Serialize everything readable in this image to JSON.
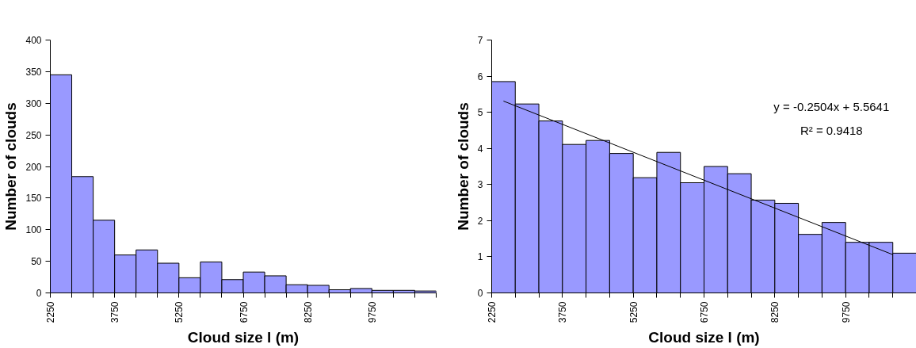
{
  "chart_data": [
    {
      "type": "histogram",
      "xlabel": "Cloud size l (m)",
      "ylabel": "Number of clouds",
      "color": "#9999ff",
      "bins": [
        2250,
        2750,
        3250,
        3750,
        4250,
        4750,
        5250,
        5750,
        6250,
        6750,
        7250,
        7750,
        8250,
        8750,
        9250,
        9750,
        10250,
        10750,
        11250
      ],
      "values": [
        345,
        184,
        115,
        60,
        68,
        47,
        24,
        49,
        21,
        33,
        27,
        13,
        12,
        5,
        7,
        4,
        4,
        3
      ],
      "xlim": [
        2250,
        11250
      ],
      "xticks": [
        2250,
        {
          "value": 2750,
          "label": null
        },
        {
          "value": 3250,
          "label": null
        },
        3750,
        {
          "value": 4250,
          "label": null
        },
        {
          "value": 4750,
          "label": null
        },
        5250,
        {
          "value": 5750,
          "label": null
        },
        {
          "value": 6250,
          "label": null
        },
        6750,
        {
          "value": 7250,
          "label": null
        },
        {
          "value": 7750,
          "label": null
        },
        8250,
        {
          "value": 8750,
          "label": null
        },
        {
          "value": 9250,
          "label": null
        },
        9750,
        {
          "value": 10250,
          "label": null
        },
        {
          "value": 10750,
          "label": null
        },
        {
          "value": 11250,
          "label": null
        }
      ],
      "ylim": [
        0,
        400
      ],
      "yticks": [
        0,
        50,
        100,
        150,
        200,
        250,
        300,
        350,
        400
      ],
      "grid": false
    },
    {
      "type": "histogram",
      "xlabel": "Cloud size l (m)",
      "ylabel": "Number of clouds",
      "color": "#9999ff",
      "bins": [
        2250,
        2750,
        3250,
        3750,
        4250,
        4750,
        5250,
        5750,
        6250,
        6750,
        7250,
        7750,
        8250,
        8750,
        9250,
        9750,
        10250,
        10750,
        11250
      ],
      "values": [
        5.85,
        5.23,
        4.76,
        4.11,
        4.22,
        3.86,
        3.19,
        3.89,
        3.05,
        3.5,
        3.3,
        2.57,
        2.48,
        1.62,
        1.95,
        1.4,
        1.4,
        1.1
      ],
      "series": [
        {
          "type": "line",
          "color": "#000000",
          "x": [
            2500,
            10750
          ],
          "values": [
            5.31,
            1.06
          ]
        }
      ],
      "annotations": [
        "y = -0.2504x + 5.5641",
        "R² = 0.9418"
      ],
      "xlim": [
        2250,
        11250
      ],
      "xticks": [
        2250,
        {
          "value": 2750,
          "label": null
        },
        {
          "value": 3250,
          "label": null
        },
        3750,
        {
          "value": 4250,
          "label": null
        },
        {
          "value": 4750,
          "label": null
        },
        5250,
        {
          "value": 5750,
          "label": null
        },
        {
          "value": 6250,
          "label": null
        },
        6750,
        {
          "value": 7250,
          "label": null
        },
        {
          "value": 7750,
          "label": null
        },
        8250,
        {
          "value": 8750,
          "label": null
        },
        {
          "value": 9250,
          "label": null
        },
        9750,
        {
          "value": 10250,
          "label": null
        },
        {
          "value": 10750,
          "label": null
        },
        {
          "value": 11250,
          "label": null
        }
      ],
      "ylim": [
        0,
        7
      ],
      "yticks": [
        0,
        1,
        2,
        3,
        4,
        5,
        6,
        7
      ],
      "grid": false
    }
  ]
}
